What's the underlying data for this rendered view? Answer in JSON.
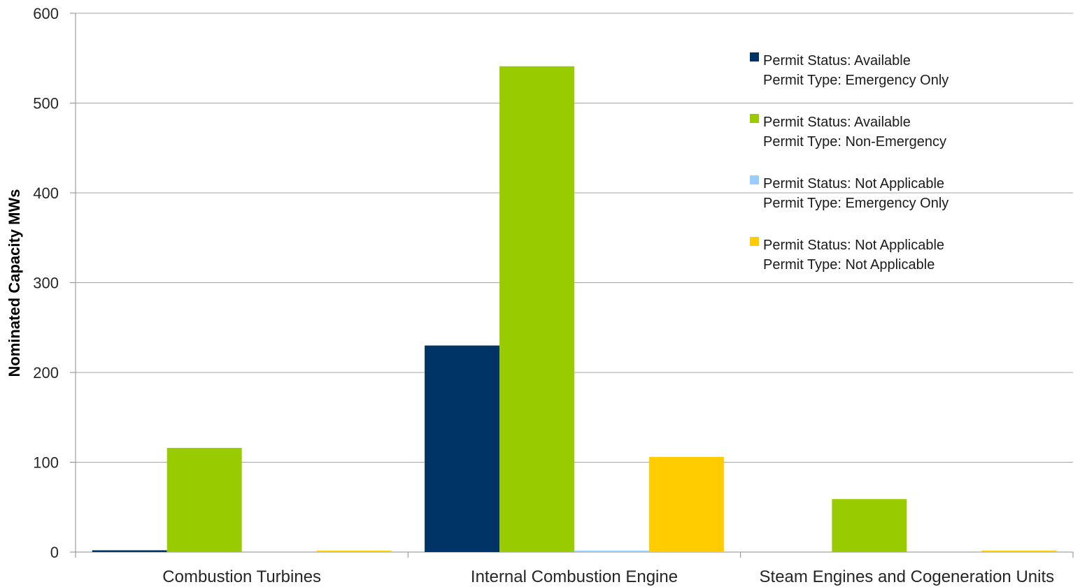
{
  "chart_data": {
    "type": "bar",
    "ylabel": "Nominated Capacity MWs",
    "ylim": [
      0,
      600
    ],
    "yticks": [
      0,
      100,
      200,
      300,
      400,
      500,
      600
    ],
    "grid": true,
    "legend_position": "top-right",
    "categories": [
      "Combustion Turbines",
      "Internal Combustion Engine",
      "Steam Engines and Cogeneration Units"
    ],
    "series": [
      {
        "name_lines": [
          "Permit Status: Available",
          "Permit Type: Emergency Only"
        ],
        "color": "#003366",
        "values": [
          2,
          230,
          0
        ]
      },
      {
        "name_lines": [
          "Permit Status: Available",
          "Permit Type: Non-Emergency"
        ],
        "color": "#99CC00",
        "values": [
          116,
          541,
          59
        ]
      },
      {
        "name_lines": [
          "Permit Status: Not Applicable",
          "Permit Type: Emergency Only"
        ],
        "color": "#99CCFF",
        "values": [
          0,
          1,
          0
        ]
      },
      {
        "name_lines": [
          "Permit Status: Not Applicable",
          "Permit Type: Not Applicable"
        ],
        "color": "#FFCC00",
        "values": [
          1,
          106,
          1
        ]
      }
    ]
  }
}
